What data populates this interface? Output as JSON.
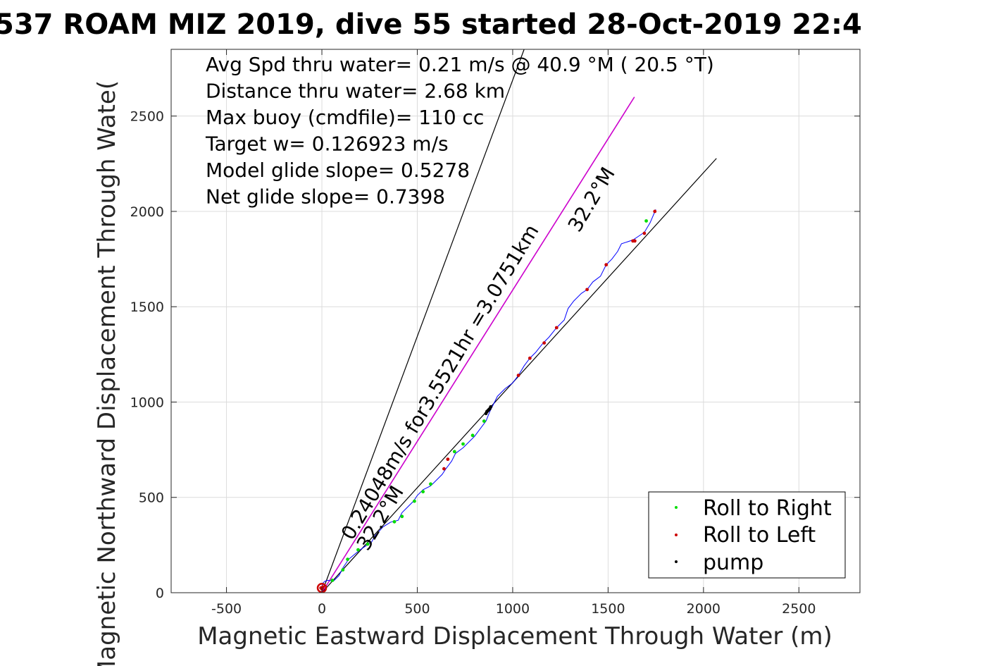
{
  "title": "537 ROAM MIZ 2019, dive 55 started 28-Oct-2019 22:4",
  "chart_data": {
    "type": "line",
    "xlabel": "Magnetic Eastward Displacement Through Water (m)",
    "ylabel": "Magnetic Northward Displacement Through Wate(",
    "xlim": [
      -790,
      2820
    ],
    "ylim": [
      0,
      2850
    ],
    "xticks": [
      -500,
      0,
      500,
      1000,
      1500,
      2000,
      2500
    ],
    "yticks": [
      0,
      500,
      1000,
      1500,
      2000,
      2500
    ],
    "xtick_labels": [
      "-500",
      "0",
      "500",
      "1000",
      "1500",
      "2000",
      "2500"
    ],
    "ytick_labels": [
      "0",
      "500",
      "1000",
      "1500",
      "2000",
      "2500"
    ],
    "grid": true,
    "legend_position": "bottom-right",
    "info_lines": [
      "Avg Spd thru water=  0.21 m/s @  40.9 °M ( 20.5 °T)",
      "Distance thru water=  2.68 km",
      "Max buoy (cmdfile)= 110 cc",
      "Target w= 0.126923 m/s",
      "Model glide slope= 0.5278",
      "Net glide slope= 0.7398"
    ],
    "annotations": {
      "speed_text": "0.24048m/s for3.5521hr =3.0751km",
      "heading_upper": "32.2°M",
      "heading_lower": "32.2°M"
    },
    "reference_lines": [
      {
        "name": "bounding-line-left",
        "x": [
          0,
          1060
        ],
        "y": [
          0,
          2850
        ],
        "color": "#000000"
      },
      {
        "name": "heading-line",
        "x": [
          0,
          1638
        ],
        "y": [
          0,
          2600
        ],
        "color": "#cc00cc"
      },
      {
        "name": "bounding-line-right",
        "x": [
          0,
          2068
        ],
        "y": [
          0,
          2278
        ],
        "color": "#000000"
      }
    ],
    "track": {
      "color": "#0000ff",
      "x": [
        0,
        5,
        15,
        30,
        60,
        90,
        110,
        140,
        170,
        200,
        230,
        260,
        280,
        320,
        360,
        400,
        420,
        450,
        480,
        500,
        530,
        570,
        600,
        630,
        650,
        680,
        700,
        740,
        770,
        800,
        830,
        860,
        880,
        920,
        960,
        1000,
        1030,
        1060,
        1090,
        1120,
        1160,
        1190,
        1230,
        1270,
        1290,
        1320,
        1360,
        1390,
        1420,
        1460,
        1490,
        1520,
        1550,
        1570,
        1600,
        1630,
        1660,
        1690,
        1720,
        1750
      ],
      "y": [
        30,
        50,
        60,
        65,
        60,
        90,
        130,
        175,
        200,
        225,
        245,
        265,
        300,
        345,
        370,
        380,
        420,
        450,
        480,
        510,
        540,
        560,
        590,
        620,
        650,
        690,
        730,
        760,
        790,
        820,
        860,
        900,
        950,
        1030,
        1070,
        1100,
        1140,
        1190,
        1230,
        1260,
        1310,
        1340,
        1390,
        1430,
        1490,
        1530,
        1570,
        1590,
        1630,
        1660,
        1720,
        1750,
        1790,
        1830,
        1840,
        1850,
        1870,
        1890,
        1940,
        2010
      ]
    },
    "markers": {
      "roll_right": {
        "color": "#00dd00",
        "x": [
          55,
          110,
          135,
          190,
          240,
          380,
          420,
          485,
          530,
          570,
          695,
          740,
          790,
          850,
          1700
        ],
        "y": [
          65,
          120,
          175,
          225,
          255,
          372,
          400,
          480,
          530,
          570,
          740,
          780,
          825,
          900,
          1950
        ]
      },
      "roll_left": {
        "color": "#cc0000",
        "x": [
          -5,
          0,
          5,
          640,
          660,
          1030,
          1090,
          1165,
          1230,
          1390,
          1490,
          1630,
          1640,
          1690,
          1745
        ],
        "y": [
          25,
          20,
          30,
          650,
          700,
          1140,
          1230,
          1310,
          1390,
          1590,
          1720,
          1845,
          1845,
          1885,
          2000
        ]
      },
      "pump": {
        "color": "#000000",
        "x": [
          860,
          865,
          870,
          875,
          880,
          885
        ],
        "y": [
          940,
          950,
          955,
          960,
          965,
          975
        ]
      }
    },
    "legend": [
      {
        "label": "Roll to Right",
        "color": "#00dd00"
      },
      {
        "label": "Roll to Left",
        "color": "#cc0000"
      },
      {
        "label": "pump",
        "color": "#000000"
      }
    ]
  }
}
